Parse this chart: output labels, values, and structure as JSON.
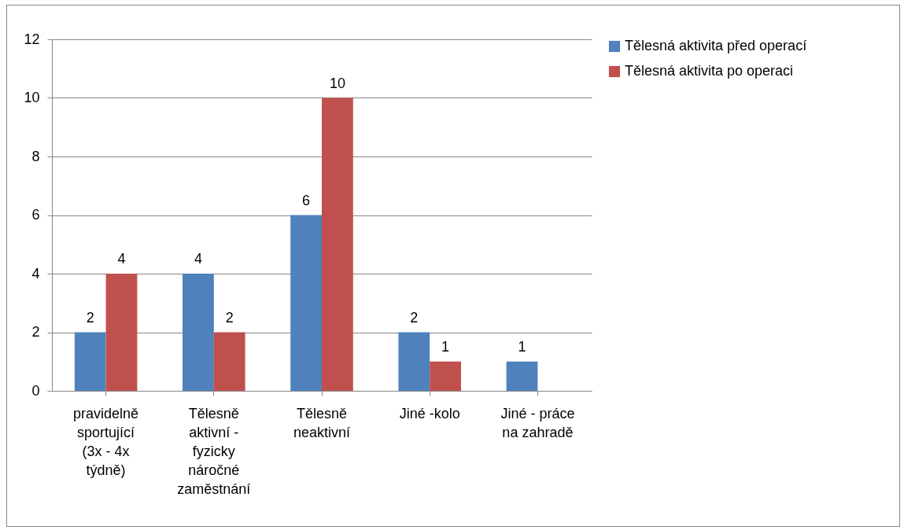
{
  "chart_data": {
    "type": "bar",
    "categories": [
      "pravidelně sportující (3x - 4x týdně)",
      "Tělesně aktivní - fyzicky náročné zaměstnání",
      "Tělesně neaktivní",
      "Jiné -kolo",
      "Jiné - práce na zahradě"
    ],
    "series": [
      {
        "name": "Tělesná aktivita před operací",
        "color": "#4f81bd",
        "values": [
          2,
          4,
          6,
          2,
          1
        ]
      },
      {
        "name": "Tělesná aktivita po operaci",
        "color": "#c0504d",
        "values": [
          4,
          2,
          10,
          1,
          null
        ]
      }
    ],
    "ylim": [
      0,
      12
    ],
    "yticks": [
      0,
      2,
      4,
      6,
      8,
      10,
      12
    ],
    "grid": "y",
    "legend": "right",
    "data_labels": true
  }
}
